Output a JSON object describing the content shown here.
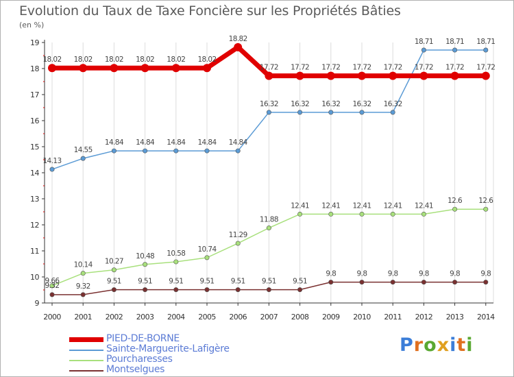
{
  "title": "Evolution du Taux de Taxe Foncière sur les Propriétés Bâties",
  "subtitle": "(en %)",
  "chart_data": {
    "type": "line",
    "title": "Evolution du Taux de Taxe Foncière sur les Propriétés Bâties",
    "ylabel": "(en %)",
    "xlabel": "",
    "ylim": [
      9,
      19
    ],
    "yticks": [
      "9",
      "10",
      "11",
      "12",
      "13",
      "14",
      "15",
      "16",
      "17",
      "18",
      "19"
    ],
    "categories": [
      "2000",
      "2001",
      "2002",
      "2003",
      "2004",
      "2005",
      "2006",
      "2007",
      "2008",
      "2009",
      "2010",
      "2011",
      "2012",
      "2013",
      "2014"
    ],
    "grid": "vertical",
    "series": [
      {
        "name": "PIED-DE-BORNE",
        "color": "#e00000",
        "values": [
          18.02,
          18.02,
          18.02,
          18.02,
          18.02,
          18.02,
          18.82,
          17.72,
          17.72,
          17.72,
          17.72,
          17.72,
          17.72,
          17.72,
          17.72
        ],
        "labels": [
          "18.02",
          "18.02",
          "18.02",
          "18.02",
          "18.02",
          "18.02",
          "18.82",
          "17.72",
          "17.72",
          "17.72",
          "17.72",
          "17.72",
          "17.72",
          "17.72",
          "17.72"
        ]
      },
      {
        "name": "Sainte-Marguerite-Lafigère",
        "color": "#5b9bd5",
        "values": [
          14.13,
          14.55,
          14.84,
          14.84,
          14.84,
          14.84,
          14.84,
          16.32,
          16.32,
          16.32,
          16.32,
          16.32,
          18.71,
          18.71,
          18.71
        ],
        "labels": [
          "14.13",
          "14.55",
          "14.84",
          "14.84",
          "14.84",
          "14.84",
          "14.84",
          "16.32",
          "16.32",
          "16.32",
          "16.32",
          "16.32",
          "18.71",
          "18.71",
          "18.71"
        ]
      },
      {
        "name": "Pourcharesses",
        "color": "#a8e07c",
        "values": [
          9.66,
          10.14,
          10.27,
          10.48,
          10.58,
          10.74,
          11.29,
          11.88,
          12.41,
          12.41,
          12.41,
          12.41,
          12.41,
          12.6,
          12.6
        ],
        "labels": [
          "9.66",
          "10.14",
          "10.27",
          "10.48",
          "10.58",
          "10.74",
          "11.29",
          "11.88",
          "12.41",
          "12.41",
          "12.41",
          "12.41",
          "12.41",
          "12.6",
          "12.6"
        ]
      },
      {
        "name": "Montselgues",
        "color": "#7a3030",
        "values": [
          9.32,
          9.32,
          9.51,
          9.51,
          9.51,
          9.51,
          9.51,
          9.51,
          9.51,
          9.8,
          9.8,
          9.8,
          9.8,
          9.8,
          9.8
        ],
        "labels": [
          "9.32",
          "9.32",
          "9.51",
          "9.51",
          "9.51",
          "9.51",
          "9.51",
          "9.51",
          "9.51",
          "9.8",
          "9.8",
          "9.8",
          "9.8",
          "9.8",
          "9.8"
        ]
      }
    ]
  },
  "legend": [
    {
      "label": "PIED-DE-BORNE",
      "color": "#e00000"
    },
    {
      "label": "Sainte-Marguerite-Lafigère",
      "color": "#5b9bd5"
    },
    {
      "label": "Pourcharesses",
      "color": "#a8e07c"
    },
    {
      "label": "Montselgues",
      "color": "#7a3030"
    }
  ],
  "logo": {
    "letters": [
      "P",
      "r",
      "o",
      "x",
      "i",
      "t",
      "i"
    ],
    "colors": [
      "#3b7dd8",
      "#e07020",
      "#5aa832",
      "#e0a020",
      "#3b7dd8",
      "#e07020",
      "#5aa832"
    ]
  }
}
